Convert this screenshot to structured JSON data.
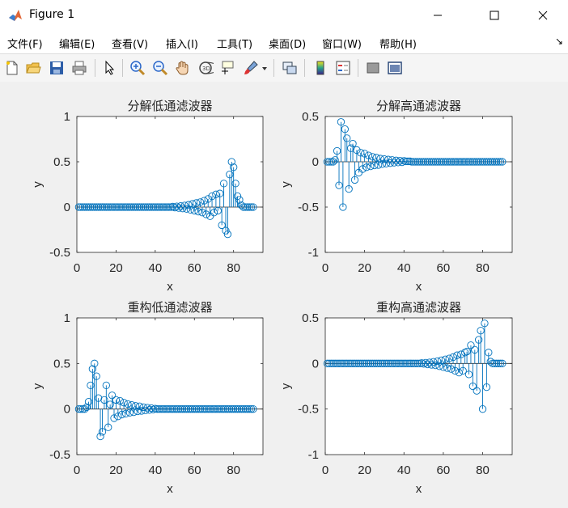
{
  "window": {
    "title": "Figure 1",
    "minimize_icon": "minimize-icon",
    "maximize_icon": "maximize-icon",
    "close_icon": "close-icon"
  },
  "menu": [
    "文件(F)",
    "编辑(E)",
    "查看(V)",
    "插入(I)",
    "工具(T)",
    "桌面(D)",
    "窗口(W)",
    "帮助(H)"
  ],
  "menu_arrow": "↘",
  "toolbar": {
    "icons": [
      "new-figure-icon",
      "open-file-icon",
      "save-icon",
      "print-icon",
      "select-arrow-icon",
      "zoom-in-icon",
      "zoom-out-icon",
      "pan-hand-icon",
      "rotate-3d-icon",
      "data-cursor-icon",
      "brush-icon",
      "brush-dropdown-icon",
      "link-plot-icon",
      "colorbar-icon",
      "legend-icon",
      "hide-plot-tools-icon",
      "show-plot-tools-icon"
    ]
  },
  "colors": {
    "stem": "#0072BD",
    "axes_bg": "#ffffff",
    "figure_bg": "#f0f0f0",
    "text": "#262626"
  },
  "chart_data": [
    {
      "type": "stem",
      "title": "分解低通滤波器",
      "xlabel": "x",
      "ylabel": "y",
      "xlim": [
        0,
        95
      ],
      "ylim": [
        -0.5,
        1
      ],
      "xticks": [
        0,
        20,
        40,
        60,
        80
      ],
      "yticks": [
        -0.5,
        0,
        0.5,
        1
      ],
      "ytick_labels": [
        "-0.5",
        "0",
        "0.5",
        "1"
      ],
      "x": [
        1,
        2,
        3,
        4,
        5,
        6,
        7,
        8,
        9,
        10,
        11,
        12,
        13,
        14,
        15,
        16,
        17,
        18,
        19,
        20,
        21,
        22,
        23,
        24,
        25,
        26,
        27,
        28,
        29,
        30,
        31,
        32,
        33,
        34,
        35,
        36,
        37,
        38,
        39,
        40,
        41,
        42,
        43,
        44,
        45,
        46,
        47,
        48,
        49,
        50,
        51,
        52,
        53,
        54,
        55,
        56,
        57,
        58,
        59,
        60,
        61,
        62,
        63,
        64,
        65,
        66,
        67,
        68,
        69,
        70,
        71,
        72,
        73,
        74,
        75,
        76,
        77,
        78,
        79,
        80,
        81,
        82,
        83,
        84,
        85,
        86,
        87,
        88,
        89,
        90
      ],
      "values": [
        0,
        0,
        0,
        0,
        0,
        0,
        0,
        0,
        0,
        0,
        0,
        0,
        0,
        0,
        0,
        0,
        0,
        0,
        0,
        0,
        0,
        0,
        0,
        0,
        0,
        0,
        0,
        0,
        0,
        0,
        0,
        0,
        0,
        0,
        0,
        0,
        0,
        0,
        0,
        0,
        0,
        0,
        0,
        0,
        0,
        0,
        0,
        0,
        0.005,
        -0.005,
        0.008,
        -0.01,
        0.012,
        -0.015,
        0.018,
        -0.02,
        0.025,
        -0.03,
        0.035,
        -0.04,
        0.045,
        -0.05,
        0.055,
        -0.06,
        0.07,
        -0.08,
        0.09,
        -0.1,
        0.12,
        -0.06,
        0.14,
        -0.04,
        0.15,
        -0.2,
        0.26,
        -0.26,
        -0.3,
        0.36,
        0.5,
        0.44,
        0.26,
        0.12,
        0.08,
        0.02,
        0,
        0,
        0,
        0,
        0,
        0
      ]
    },
    {
      "type": "stem",
      "title": "分解高通滤波器",
      "xlabel": "x",
      "ylabel": "y",
      "xlim": [
        0,
        95
      ],
      "ylim": [
        -1,
        0.5
      ],
      "xticks": [
        0,
        20,
        40,
        60,
        80
      ],
      "yticks": [
        -1,
        -0.5,
        0,
        0.5
      ],
      "ytick_labels": [
        "-1",
        "-0.5",
        "0",
        "0.5"
      ],
      "x": [
        1,
        2,
        3,
        4,
        5,
        6,
        7,
        8,
        9,
        10,
        11,
        12,
        13,
        14,
        15,
        16,
        17,
        18,
        19,
        20,
        21,
        22,
        23,
        24,
        25,
        26,
        27,
        28,
        29,
        30,
        31,
        32,
        33,
        34,
        35,
        36,
        37,
        38,
        39,
        40,
        41,
        42,
        43,
        44,
        45,
        46,
        47,
        48,
        49,
        50,
        51,
        52,
        53,
        54,
        55,
        56,
        57,
        58,
        59,
        60,
        61,
        62,
        63,
        64,
        65,
        66,
        67,
        68,
        69,
        70,
        71,
        72,
        73,
        74,
        75,
        76,
        77,
        78,
        79,
        80,
        81,
        82,
        83,
        84,
        85,
        86,
        87,
        88,
        89,
        90
      ],
      "values": [
        0,
        0,
        0,
        0,
        0.02,
        0.12,
        -0.26,
        0.44,
        -0.5,
        0.36,
        0.26,
        -0.3,
        0.15,
        0.2,
        -0.2,
        0.13,
        -0.12,
        0.1,
        -0.08,
        0.09,
        -0.06,
        0.07,
        -0.05,
        0.055,
        -0.04,
        0.045,
        -0.035,
        0.035,
        -0.025,
        0.03,
        -0.02,
        0.025,
        -0.015,
        0.02,
        -0.01,
        0.015,
        -0.008,
        0.012,
        -0.005,
        0.01,
        0.005,
        0.005,
        0.005,
        0,
        0,
        0,
        0,
        0,
        0,
        0,
        0,
        0,
        0,
        0,
        0,
        0,
        0,
        0,
        0,
        0,
        0,
        0,
        0,
        0,
        0,
        0,
        0,
        0,
        0,
        0,
        0,
        0,
        0,
        0,
        0,
        0,
        0,
        0,
        0,
        0,
        0,
        0,
        0,
        0,
        0,
        0,
        0,
        0,
        0,
        0
      ]
    },
    {
      "type": "stem",
      "title": "重构低通滤波器",
      "xlabel": "x",
      "ylabel": "y",
      "xlim": [
        0,
        95
      ],
      "ylim": [
        -0.5,
        1
      ],
      "xticks": [
        0,
        20,
        40,
        60,
        80
      ],
      "yticks": [
        -0.5,
        0,
        0.5,
        1
      ],
      "ytick_labels": [
        "-0.5",
        "0",
        "0.5",
        "1"
      ],
      "x": [
        1,
        2,
        3,
        4,
        5,
        6,
        7,
        8,
        9,
        10,
        11,
        12,
        13,
        14,
        15,
        16,
        17,
        18,
        19,
        20,
        21,
        22,
        23,
        24,
        25,
        26,
        27,
        28,
        29,
        30,
        31,
        32,
        33,
        34,
        35,
        36,
        37,
        38,
        39,
        40,
        41,
        42,
        43,
        44,
        45,
        46,
        47,
        48,
        49,
        50,
        51,
        52,
        53,
        54,
        55,
        56,
        57,
        58,
        59,
        60,
        61,
        62,
        63,
        64,
        65,
        66,
        67,
        68,
        69,
        70,
        71,
        72,
        73,
        74,
        75,
        76,
        77,
        78,
        79,
        80,
        81,
        82,
        83,
        84,
        85,
        86,
        87,
        88,
        89,
        90
      ],
      "values": [
        0,
        0,
        0,
        0,
        0.02,
        0.08,
        0.26,
        0.44,
        0.5,
        0.36,
        0.12,
        -0.3,
        -0.25,
        0.1,
        0.26,
        -0.2,
        0.05,
        0.15,
        -0.1,
        0.1,
        -0.08,
        0.09,
        -0.06,
        0.07,
        -0.05,
        0.055,
        -0.04,
        0.045,
        -0.035,
        0.035,
        -0.025,
        0.03,
        -0.02,
        0.02,
        -0.015,
        0.015,
        -0.01,
        0.01,
        -0.005,
        0.005,
        0,
        0,
        0,
        0,
        0,
        0,
        0,
        0,
        0,
        0,
        0,
        0,
        0,
        0,
        0,
        0,
        0,
        0,
        0,
        0,
        0,
        0,
        0,
        0,
        0,
        0,
        0,
        0,
        0,
        0,
        0,
        0,
        0,
        0,
        0,
        0,
        0,
        0,
        0,
        0,
        0,
        0,
        0,
        0,
        0,
        0,
        0,
        0,
        0,
        0
      ]
    },
    {
      "type": "stem",
      "title": "重构高通滤波器",
      "xlabel": "x",
      "ylabel": "y",
      "xlim": [
        0,
        95
      ],
      "ylim": [
        -1,
        0.5
      ],
      "xticks": [
        0,
        20,
        40,
        60,
        80
      ],
      "yticks": [
        -1,
        -0.5,
        0,
        0.5
      ],
      "ytick_labels": [
        "-1",
        "-0.5",
        "0",
        "0.5"
      ],
      "x": [
        1,
        2,
        3,
        4,
        5,
        6,
        7,
        8,
        9,
        10,
        11,
        12,
        13,
        14,
        15,
        16,
        17,
        18,
        19,
        20,
        21,
        22,
        23,
        24,
        25,
        26,
        27,
        28,
        29,
        30,
        31,
        32,
        33,
        34,
        35,
        36,
        37,
        38,
        39,
        40,
        41,
        42,
        43,
        44,
        45,
        46,
        47,
        48,
        49,
        50,
        51,
        52,
        53,
        54,
        55,
        56,
        57,
        58,
        59,
        60,
        61,
        62,
        63,
        64,
        65,
        66,
        67,
        68,
        69,
        70,
        71,
        72,
        73,
        74,
        75,
        76,
        77,
        78,
        79,
        80,
        81,
        82,
        83,
        84,
        85,
        86,
        87,
        88,
        89,
        90
      ],
      "values": [
        0,
        0,
        0,
        0,
        0,
        0,
        0,
        0,
        0,
        0,
        0,
        0,
        0,
        0,
        0,
        0,
        0,
        0,
        0,
        0,
        0,
        0,
        0,
        0,
        0,
        0,
        0,
        0,
        0,
        0,
        0,
        0,
        0,
        0,
        0,
        0,
        0,
        0,
        0,
        0,
        0,
        0,
        0,
        0,
        0,
        0,
        0,
        0,
        0.005,
        -0.005,
        0.008,
        -0.01,
        0.012,
        -0.015,
        0.018,
        -0.02,
        0.025,
        -0.03,
        0.035,
        -0.04,
        0.045,
        -0.05,
        0.055,
        -0.06,
        0.07,
        -0.08,
        0.09,
        -0.1,
        0.1,
        -0.08,
        0.12,
        0.13,
        -0.12,
        0.2,
        -0.25,
        0.15,
        -0.3,
        0.26,
        0.36,
        -0.5,
        0.44,
        -0.26,
        0.12,
        0.02,
        0,
        0,
        0,
        0,
        0,
        0
      ]
    }
  ]
}
